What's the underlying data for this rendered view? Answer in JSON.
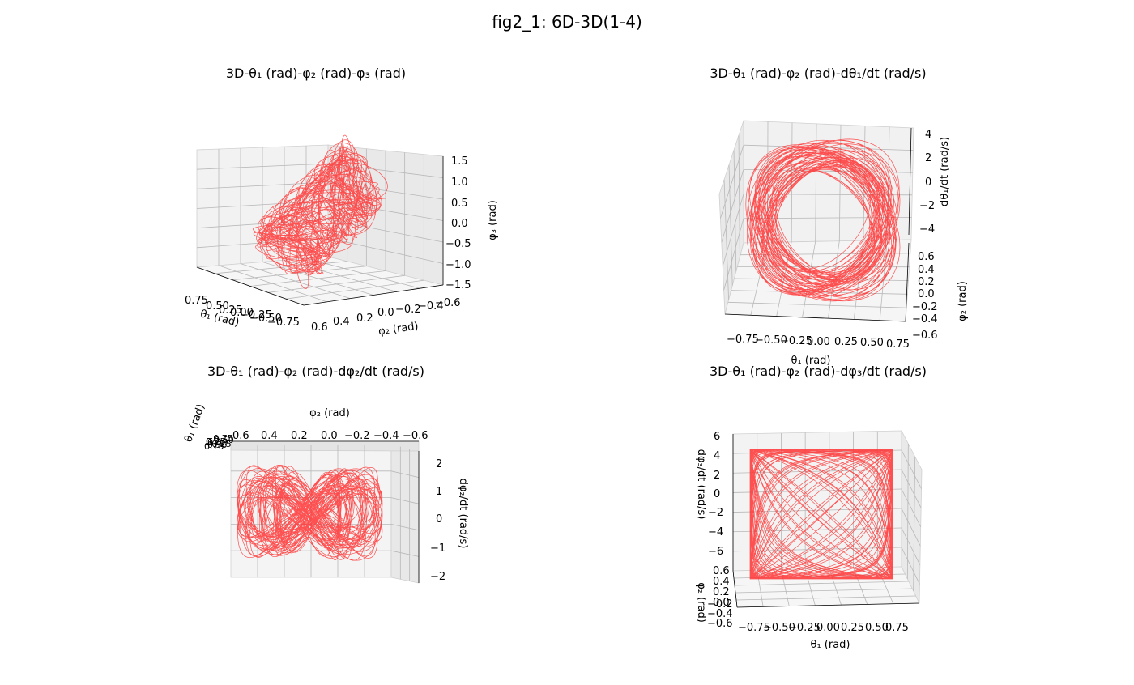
{
  "figure": {
    "title": "fig2_1: 6D-3D(1-4)",
    "curve_color": "#ff3333"
  },
  "chart_data": [
    {
      "type": "line",
      "title": "3D-θ₁ (rad)-φ₂ (rad)-φ₃ (rad)",
      "xlabel": "θ₁ (rad)",
      "ylabel": "φ₂ (rad)",
      "zlabel": "φ₃ (rad)",
      "x_ticks": [
        "0.75",
        "0.50",
        "0.25",
        "0.00",
        "−0.25",
        "−0.50",
        "−0.75"
      ],
      "y_ticks": [
        "0.6",
        "0.4",
        "0.2",
        "0.0",
        "−0.2",
        "−0.4",
        "−0.6"
      ],
      "z_ticks": [
        "1.5",
        "1.0",
        "0.5",
        "0.0",
        "−0.5",
        "−1.0",
        "−1.5"
      ],
      "xlim": [
        -0.85,
        0.85
      ],
      "ylim": [
        -0.65,
        0.65
      ],
      "zlim": [
        -1.6,
        1.6
      ]
    },
    {
      "type": "line",
      "title": "3D-θ₁ (rad)-φ₂ (rad)-dθ₁/dt (rad/s)",
      "xlabel": "θ₁ (rad)",
      "ylabel": "φ₂ (rad)",
      "zlabel": "dθ₁/dt (rad/s)",
      "x_ticks": [
        "−0.75",
        "−0.50",
        "−0.25",
        "0.00",
        "0.25",
        "0.50",
        "0.75"
      ],
      "y_ticks": [
        "0.6",
        "0.4",
        "0.2",
        "0.0",
        "−0.2",
        "−0.4",
        "−0.6"
      ],
      "z_ticks": [
        "4",
        "2",
        "0",
        "−2",
        "−4"
      ],
      "xlim": [
        -0.85,
        0.85
      ],
      "ylim": [
        -0.65,
        0.65
      ],
      "zlim": [
        -5,
        5
      ]
    },
    {
      "type": "line",
      "title": "3D-θ₁ (rad)-φ₂ (rad)-dφ₂/dt (rad/s)",
      "xlabel": "θ₁ (rad)",
      "ylabel": "φ₂ (rad)",
      "zlabel": "dφ₂/dt (rad/s)",
      "x_ticks": [
        "−0.75",
        "−0.50",
        "0.25",
        "0.00",
        "−0.25",
        "0.50",
        "0.75"
      ],
      "y_ticks": [
        "0.6",
        "0.4",
        "0.2",
        "0.0",
        "−0.2",
        "−0.4",
        "−0.6"
      ],
      "z_ticks": [
        "2",
        "1",
        "0",
        "−1",
        "−2"
      ],
      "xlim": [
        -0.85,
        0.85
      ],
      "ylim": [
        -0.65,
        0.65
      ],
      "zlim": [
        -2.3,
        2.3
      ]
    },
    {
      "type": "line",
      "title": "3D-θ₁ (rad)-φ₂ (rad)-dφ₃/dt (rad/s)",
      "xlabel": "θ₁ (rad)",
      "ylabel": "φ₂ (rad)",
      "zlabel": "dφ₃/dt (rad/s)",
      "x_ticks": [
        "−0.75",
        "−0.50",
        "−0.25",
        "0.00",
        "0.25",
        "0.50",
        "0.75"
      ],
      "y_ticks": [
        "0.6",
        "0.4",
        "0.2",
        "0.0",
        "−0.2",
        "−0.4",
        "−0.6"
      ],
      "z_ticks": [
        "6",
        "4",
        "2",
        "0",
        "−2",
        "−4",
        "−6"
      ],
      "xlim": [
        -0.85,
        0.85
      ],
      "ylim": [
        -0.65,
        0.65
      ],
      "zlim": [
        -7,
        7
      ]
    }
  ]
}
